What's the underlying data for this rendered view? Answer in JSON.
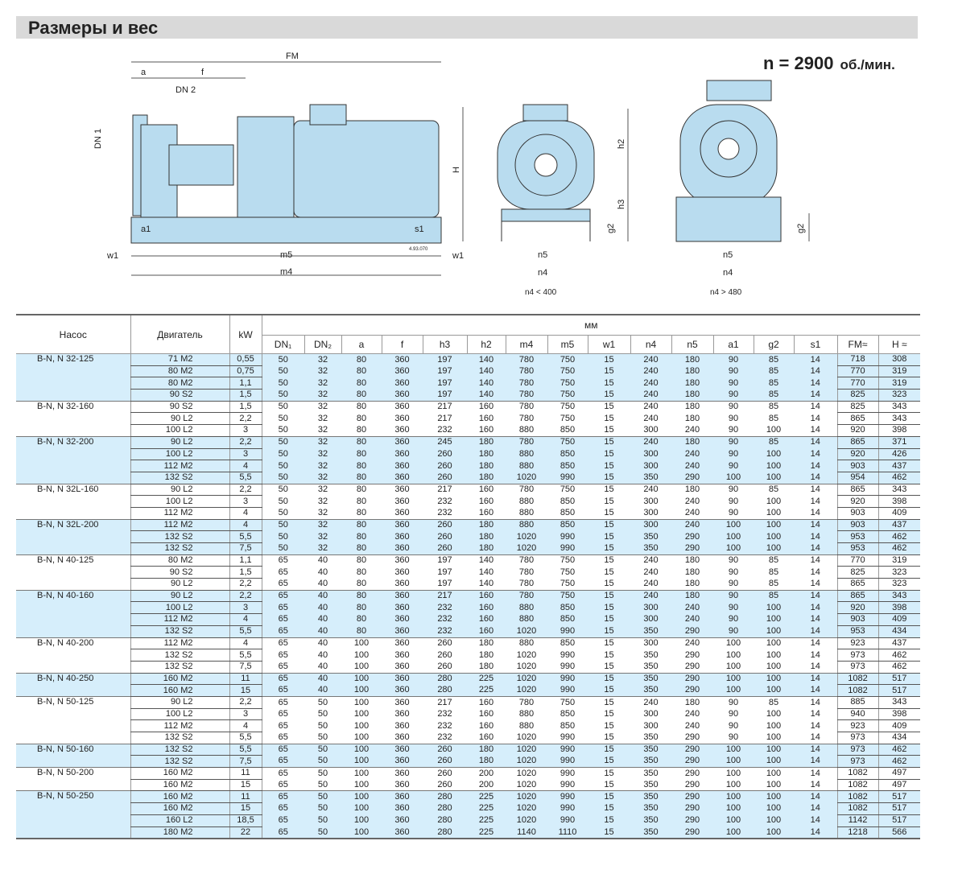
{
  "header": {
    "title": "Размеры и вес"
  },
  "speed": {
    "label": "n = 2900",
    "unit": "об./мин."
  },
  "drawing": {
    "side": {
      "FM": "FM",
      "a": "a",
      "f": "f",
      "DN2": "DN 2",
      "DN1": "DN 1",
      "H": "H",
      "a1": "a1",
      "s1": "s1",
      "w1_left": "w1",
      "w1_right": "w1",
      "m5": "m5",
      "m4": "m4",
      "code": "4.93.070"
    },
    "front1": {
      "h2": "h2",
      "h3": "h3",
      "g2": "g2",
      "n5": "n5",
      "n4": "n4",
      "caption": "n4 < 400"
    },
    "front2": {
      "g2": "g2",
      "n5": "n5",
      "n4": "n4",
      "caption": "n4 > 480"
    }
  },
  "colors": {
    "fill": "#d6eefb",
    "header_bar": "#d9d9d9",
    "drawing": "#b9dcef"
  },
  "table": {
    "headers": {
      "pump": "Насос",
      "motor": "Двигатель",
      "kw": "kW",
      "mm": "мм",
      "cols": [
        "DN₁",
        "DN₂",
        "a",
        "f",
        "h3",
        "h2",
        "m4",
        "m5",
        "w1",
        "n4",
        "n5",
        "a1",
        "g2",
        "s1",
        "FM≈",
        "H ≈"
      ]
    },
    "groups": [
      {
        "pump": "B-N,    N 32-125",
        "rows": [
          [
            "71 M2",
            "0,55",
            50,
            32,
            80,
            360,
            197,
            140,
            780,
            750,
            15,
            240,
            180,
            90,
            85,
            14,
            718,
            308
          ],
          [
            "80 M2",
            "0,75",
            50,
            32,
            80,
            360,
            197,
            140,
            780,
            750,
            15,
            240,
            180,
            90,
            85,
            14,
            770,
            319
          ],
          [
            "80 M2",
            "1,1",
            50,
            32,
            80,
            360,
            197,
            140,
            780,
            750,
            15,
            240,
            180,
            90,
            85,
            14,
            770,
            319
          ],
          [
            "90 S2",
            "1,5",
            50,
            32,
            80,
            360,
            197,
            140,
            780,
            750,
            15,
            240,
            180,
            90,
            85,
            14,
            825,
            323
          ]
        ]
      },
      {
        "pump": "B-N,    N 32-160",
        "rows": [
          [
            "90 S2",
            "1,5",
            50,
            32,
            80,
            360,
            217,
            160,
            780,
            750,
            15,
            240,
            180,
            90,
            85,
            14,
            825,
            343
          ],
          [
            "90 L2",
            "2,2",
            50,
            32,
            80,
            360,
            217,
            160,
            780,
            750,
            15,
            240,
            180,
            90,
            85,
            14,
            865,
            343
          ],
          [
            "100 L2",
            "3",
            50,
            32,
            80,
            360,
            232,
            160,
            880,
            850,
            15,
            300,
            240,
            90,
            100,
            14,
            920,
            398
          ]
        ]
      },
      {
        "pump": "B-N,    N 32-200",
        "rows": [
          [
            "90 L2",
            "2,2",
            50,
            32,
            80,
            360,
            245,
            180,
            780,
            750,
            15,
            240,
            180,
            90,
            85,
            14,
            865,
            371
          ],
          [
            "100 L2",
            "3",
            50,
            32,
            80,
            360,
            260,
            180,
            880,
            850,
            15,
            300,
            240,
            90,
            100,
            14,
            920,
            426
          ],
          [
            "112 M2",
            "4",
            50,
            32,
            80,
            360,
            260,
            180,
            880,
            850,
            15,
            300,
            240,
            90,
            100,
            14,
            903,
            437
          ],
          [
            "132 S2",
            "5,5",
            50,
            32,
            80,
            360,
            260,
            180,
            1020,
            990,
            15,
            350,
            290,
            100,
            100,
            14,
            954,
            462
          ]
        ]
      },
      {
        "pump": "B-N,    N 32L-160",
        "rows": [
          [
            "90 L2",
            "2,2",
            50,
            32,
            80,
            360,
            217,
            160,
            780,
            750,
            15,
            240,
            180,
            90,
            85,
            14,
            865,
            343
          ],
          [
            "100 L2",
            "3",
            50,
            32,
            80,
            360,
            232,
            160,
            880,
            850,
            15,
            300,
            240,
            90,
            100,
            14,
            920,
            398
          ],
          [
            "112 M2",
            "4",
            50,
            32,
            80,
            360,
            232,
            160,
            880,
            850,
            15,
            300,
            240,
            90,
            100,
            14,
            903,
            409
          ]
        ]
      },
      {
        "pump": "B-N,    N 32L-200",
        "rows": [
          [
            "112 M2",
            "4",
            50,
            32,
            80,
            360,
            260,
            180,
            880,
            850,
            15,
            300,
            240,
            100,
            100,
            14,
            903,
            437
          ],
          [
            "132 S2",
            "5,5",
            50,
            32,
            80,
            360,
            260,
            180,
            1020,
            990,
            15,
            350,
            290,
            100,
            100,
            14,
            953,
            462
          ],
          [
            "132 S2",
            "7,5",
            50,
            32,
            80,
            360,
            260,
            180,
            1020,
            990,
            15,
            350,
            290,
            100,
            100,
            14,
            953,
            462
          ]
        ]
      },
      {
        "pump": "B-N,    N 40-125",
        "rows": [
          [
            "80 M2",
            "1,1",
            65,
            40,
            80,
            360,
            197,
            140,
            780,
            750,
            15,
            240,
            180,
            90,
            85,
            14,
            770,
            319
          ],
          [
            "90 S2",
            "1,5",
            65,
            40,
            80,
            360,
            197,
            140,
            780,
            750,
            15,
            240,
            180,
            90,
            85,
            14,
            825,
            323
          ],
          [
            "90 L2",
            "2,2",
            65,
            40,
            80,
            360,
            197,
            140,
            780,
            750,
            15,
            240,
            180,
            90,
            85,
            14,
            865,
            323
          ]
        ]
      },
      {
        "pump": "B-N,    N 40-160",
        "rows": [
          [
            "90 L2",
            "2,2",
            65,
            40,
            80,
            360,
            217,
            160,
            780,
            750,
            15,
            240,
            180,
            90,
            85,
            14,
            865,
            343
          ],
          [
            "100 L2",
            "3",
            65,
            40,
            80,
            360,
            232,
            160,
            880,
            850,
            15,
            300,
            240,
            90,
            100,
            14,
            920,
            398
          ],
          [
            "112 M2",
            "4",
            65,
            40,
            80,
            360,
            232,
            160,
            880,
            850,
            15,
            300,
            240,
            90,
            100,
            14,
            903,
            409
          ],
          [
            "132 S2",
            "5,5",
            65,
            40,
            80,
            360,
            232,
            160,
            1020,
            990,
            15,
            350,
            290,
            90,
            100,
            14,
            953,
            434
          ]
        ]
      },
      {
        "pump": "B-N,    N 40-200",
        "rows": [
          [
            "112 M2",
            "4",
            65,
            40,
            100,
            360,
            260,
            180,
            880,
            850,
            15,
            300,
            240,
            100,
            100,
            14,
            923,
            437
          ],
          [
            "132 S2",
            "5,5",
            65,
            40,
            100,
            360,
            260,
            180,
            1020,
            990,
            15,
            350,
            290,
            100,
            100,
            14,
            973,
            462
          ],
          [
            "132 S2",
            "7,5",
            65,
            40,
            100,
            360,
            260,
            180,
            1020,
            990,
            15,
            350,
            290,
            100,
            100,
            14,
            973,
            462
          ]
        ]
      },
      {
        "pump": "B-N,    N 40-250",
        "rows": [
          [
            "160 M2",
            "11",
            65,
            40,
            100,
            360,
            280,
            225,
            1020,
            990,
            15,
            350,
            290,
            100,
            100,
            14,
            1082,
            517
          ],
          [
            "160 M2",
            "15",
            65,
            40,
            100,
            360,
            280,
            225,
            1020,
            990,
            15,
            350,
            290,
            100,
            100,
            14,
            1082,
            517
          ]
        ]
      },
      {
        "pump": "B-N,    N 50-125",
        "rows": [
          [
            "90 L2",
            "2,2",
            65,
            50,
            100,
            360,
            217,
            160,
            780,
            750,
            15,
            240,
            180,
            90,
            85,
            14,
            885,
            343
          ],
          [
            "100 L2",
            "3",
            65,
            50,
            100,
            360,
            232,
            160,
            880,
            850,
            15,
            300,
            240,
            90,
            100,
            14,
            940,
            398
          ],
          [
            "112 M2",
            "4",
            65,
            50,
            100,
            360,
            232,
            160,
            880,
            850,
            15,
            300,
            240,
            90,
            100,
            14,
            923,
            409
          ],
          [
            "132 S2",
            "5,5",
            65,
            50,
            100,
            360,
            232,
            160,
            1020,
            990,
            15,
            350,
            290,
            90,
            100,
            14,
            973,
            434
          ]
        ]
      },
      {
        "pump": "B-N,    N 50-160",
        "rows": [
          [
            "132 S2",
            "5,5",
            65,
            50,
            100,
            360,
            260,
            180,
            1020,
            990,
            15,
            350,
            290,
            100,
            100,
            14,
            973,
            462
          ],
          [
            "132 S2",
            "7,5",
            65,
            50,
            100,
            360,
            260,
            180,
            1020,
            990,
            15,
            350,
            290,
            100,
            100,
            14,
            973,
            462
          ]
        ]
      },
      {
        "pump": "B-N,    N 50-200",
        "rows": [
          [
            "160 M2",
            "11",
            65,
            50,
            100,
            360,
            260,
            200,
            1020,
            990,
            15,
            350,
            290,
            100,
            100,
            14,
            1082,
            497
          ],
          [
            "160 M2",
            "15",
            65,
            50,
            100,
            360,
            260,
            200,
            1020,
            990,
            15,
            350,
            290,
            100,
            100,
            14,
            1082,
            497
          ]
        ]
      },
      {
        "pump": "B-N,    N 50-250",
        "rows": [
          [
            "160 M2",
            "11",
            65,
            50,
            100,
            360,
            280,
            225,
            1020,
            990,
            15,
            350,
            290,
            100,
            100,
            14,
            1082,
            517
          ],
          [
            "160 M2",
            "15",
            65,
            50,
            100,
            360,
            280,
            225,
            1020,
            990,
            15,
            350,
            290,
            100,
            100,
            14,
            1082,
            517
          ],
          [
            "160 L2",
            "18,5",
            65,
            50,
            100,
            360,
            280,
            225,
            1020,
            990,
            15,
            350,
            290,
            100,
            100,
            14,
            1142,
            517
          ],
          [
            "180 M2",
            "22",
            65,
            50,
            100,
            360,
            280,
            225,
            1140,
            1110,
            15,
            350,
            290,
            100,
            100,
            14,
            1218,
            566
          ]
        ]
      }
    ]
  }
}
